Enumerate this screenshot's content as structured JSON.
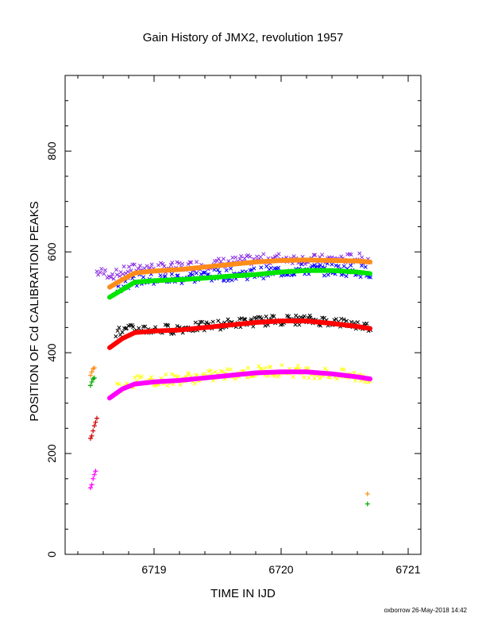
{
  "chart_data": {
    "type": "scatter",
    "title": "Gain History of JMX2, revolution 1957",
    "xlabel": "TIME IN IJD",
    "ylabel": "POSITION OF Cd CALIBRATION PEAKS",
    "xlim": [
      6718.3,
      6721.1
    ],
    "ylim": [
      0,
      950
    ],
    "x_ticks": [
      6719,
      6720,
      6721
    ],
    "y_ticks": [
      0,
      200,
      400,
      600,
      800
    ],
    "x_tick_labels": [
      "6719",
      "6720",
      "6721"
    ],
    "y_tick_labels": [
      "0",
      "200",
      "400",
      "600",
      "800"
    ],
    "grid": false,
    "footer": "oxborrow 26-May-2018 14:42",
    "series": [
      {
        "color": "#8a2be2",
        "marker": "x",
        "x": [
          6718.55,
          6718.7,
          6718.8,
          6718.9,
          6719.0,
          6719.2,
          6719.4,
          6719.6,
          6719.8,
          6720.0,
          6720.2,
          6720.4,
          6720.6,
          6720.7
        ],
        "y": [
          560,
          555,
          565,
          570,
          568,
          570,
          575,
          580,
          585,
          588,
          585,
          585,
          588,
          585
        ],
        "scatter": 10
      },
      {
        "color": "#0000ff",
        "marker": "x",
        "x": [
          6718.7,
          6718.8,
          6718.9,
          6719.0,
          6719.2,
          6719.4,
          6719.6,
          6719.8,
          6720.0,
          6720.2,
          6720.4,
          6720.6,
          6720.7
        ],
        "y": [
          530,
          540,
          545,
          545,
          548,
          552,
          555,
          558,
          562,
          565,
          565,
          563,
          560
        ],
        "scatter": 12
      },
      {
        "color": "#000000",
        "marker": "x",
        "x": [
          6718.7,
          6718.8,
          6718.9,
          6719.0,
          6719.2,
          6719.4,
          6719.6,
          6719.8,
          6720.0,
          6720.2,
          6720.4,
          6720.6,
          6720.7
        ],
        "y": [
          440,
          445,
          448,
          445,
          448,
          452,
          458,
          462,
          465,
          465,
          462,
          455,
          450
        ],
        "scatter": 10
      },
      {
        "color": "#ffff00",
        "marker": "x",
        "x": [
          6718.7,
          6718.8,
          6718.9,
          6719.0,
          6719.2,
          6719.4,
          6719.6,
          6719.8,
          6720.0,
          6720.2,
          6720.4,
          6720.6,
          6720.7
        ],
        "y": [
          330,
          340,
          345,
          345,
          348,
          352,
          358,
          362,
          365,
          362,
          358,
          352,
          350
        ],
        "scatter": 12
      },
      {
        "color": "#ff8c1a",
        "marker": "line",
        "x": [
          6718.65,
          6718.75,
          6718.85,
          6719.0,
          6719.2,
          6719.4,
          6719.6,
          6719.8,
          6720.0,
          6720.2,
          6720.4,
          6720.6,
          6720.7
        ],
        "y": [
          530,
          545,
          558,
          562,
          565,
          570,
          575,
          580,
          583,
          584,
          583,
          582,
          580
        ]
      },
      {
        "color": "#00e600",
        "marker": "line",
        "x": [
          6718.65,
          6718.75,
          6718.85,
          6719.0,
          6719.2,
          6719.4,
          6719.6,
          6719.8,
          6720.0,
          6720.2,
          6720.4,
          6720.6,
          6720.7
        ],
        "y": [
          510,
          525,
          540,
          543,
          545,
          548,
          552,
          555,
          560,
          563,
          563,
          560,
          557
        ]
      },
      {
        "color": "#ff0000",
        "marker": "line",
        "x": [
          6718.65,
          6718.75,
          6718.85,
          6719.0,
          6719.2,
          6719.4,
          6719.6,
          6719.8,
          6720.0,
          6720.2,
          6720.4,
          6720.6,
          6720.7
        ],
        "y": [
          410,
          428,
          440,
          443,
          445,
          450,
          455,
          460,
          463,
          463,
          458,
          452,
          448
        ]
      },
      {
        "color": "#ff00ff",
        "marker": "line",
        "x": [
          6718.65,
          6718.75,
          6718.85,
          6719.0,
          6719.2,
          6719.4,
          6719.6,
          6719.8,
          6720.0,
          6720.2,
          6720.4,
          6720.6,
          6720.7
        ],
        "y": [
          310,
          328,
          338,
          342,
          345,
          350,
          355,
          360,
          362,
          362,
          358,
          352,
          348
        ]
      },
      {
        "color": "#ff8c1a",
        "marker": "plus",
        "x": [
          6718.5,
          6718.51,
          6718.52,
          6718.53,
          6720.68
        ],
        "y": [
          355,
          362,
          368,
          370,
          120
        ]
      },
      {
        "color": "#00aa00",
        "marker": "plus",
        "x": [
          6718.5,
          6718.51,
          6718.52,
          6718.53,
          6720.68
        ],
        "y": [
          335,
          342,
          348,
          350,
          100
        ]
      },
      {
        "color": "#cc0000",
        "marker": "plus",
        "x": [
          6718.5,
          6718.51,
          6718.52,
          6718.53,
          6718.54,
          6718.55
        ],
        "y": [
          230,
          235,
          245,
          255,
          262,
          270
        ]
      },
      {
        "color": "#ff00ff",
        "marker": "plus",
        "x": [
          6718.5,
          6718.51,
          6718.52,
          6718.53,
          6718.54
        ],
        "y": [
          132,
          138,
          150,
          158,
          165
        ]
      }
    ]
  }
}
